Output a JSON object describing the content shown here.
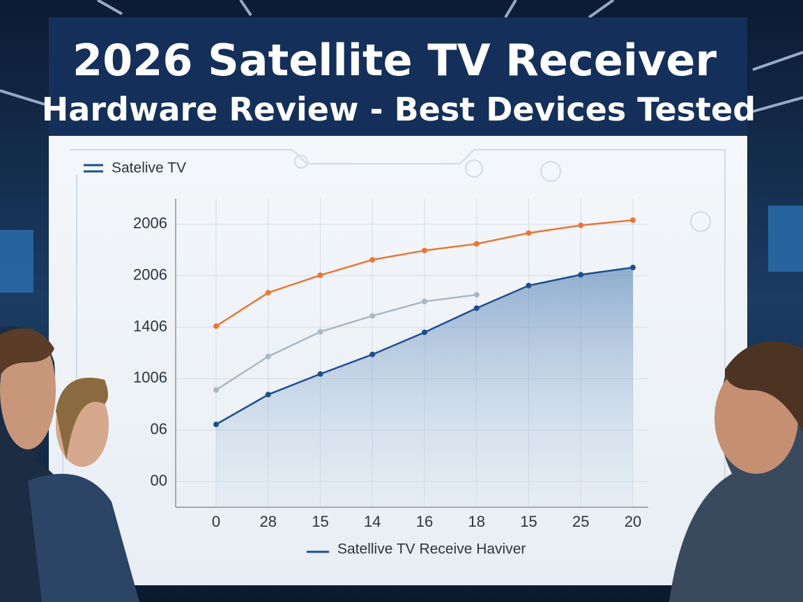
{
  "chart_data": {
    "type": "line",
    "title": [
      "2026 Satellite TV Receiver",
      "Hardware Review - Best Devices Tested"
    ],
    "subtitle": "Satelive TV",
    "categories": [
      "0",
      "28",
      "15",
      "14",
      "16",
      "18",
      "15",
      "25",
      "20"
    ],
    "series": [
      {
        "color": "#e8773a",
        "values": [
          3.02,
          3.67,
          4.01,
          4.31,
          4.49,
          4.62,
          4.83,
          4.98,
          5.08
        ]
      },
      {
        "color": "#a9b8c4",
        "values": [
          1.78,
          2.43,
          2.91,
          3.22,
          3.5,
          3.63,
          null,
          null,
          null
        ]
      },
      {
        "name": "Satellive TV Receive Haviver",
        "color": "#1f4e8c",
        "area": true,
        "values": [
          1.11,
          1.69,
          2.09,
          2.47,
          2.9,
          3.37,
          3.81,
          4.02,
          4.16
        ]
      }
    ],
    "ylim": [
      -0.5,
      5.5
    ],
    "yticks": [
      {
        "value": 0,
        "label": "00"
      },
      {
        "value": 1,
        "label": "06"
      },
      {
        "value": 2,
        "label": "1006"
      },
      {
        "value": 3,
        "label": "1406"
      },
      {
        "value": 4,
        "label": "2006"
      },
      {
        "value": 5,
        "label": "2006"
      }
    ],
    "grid": true
  }
}
